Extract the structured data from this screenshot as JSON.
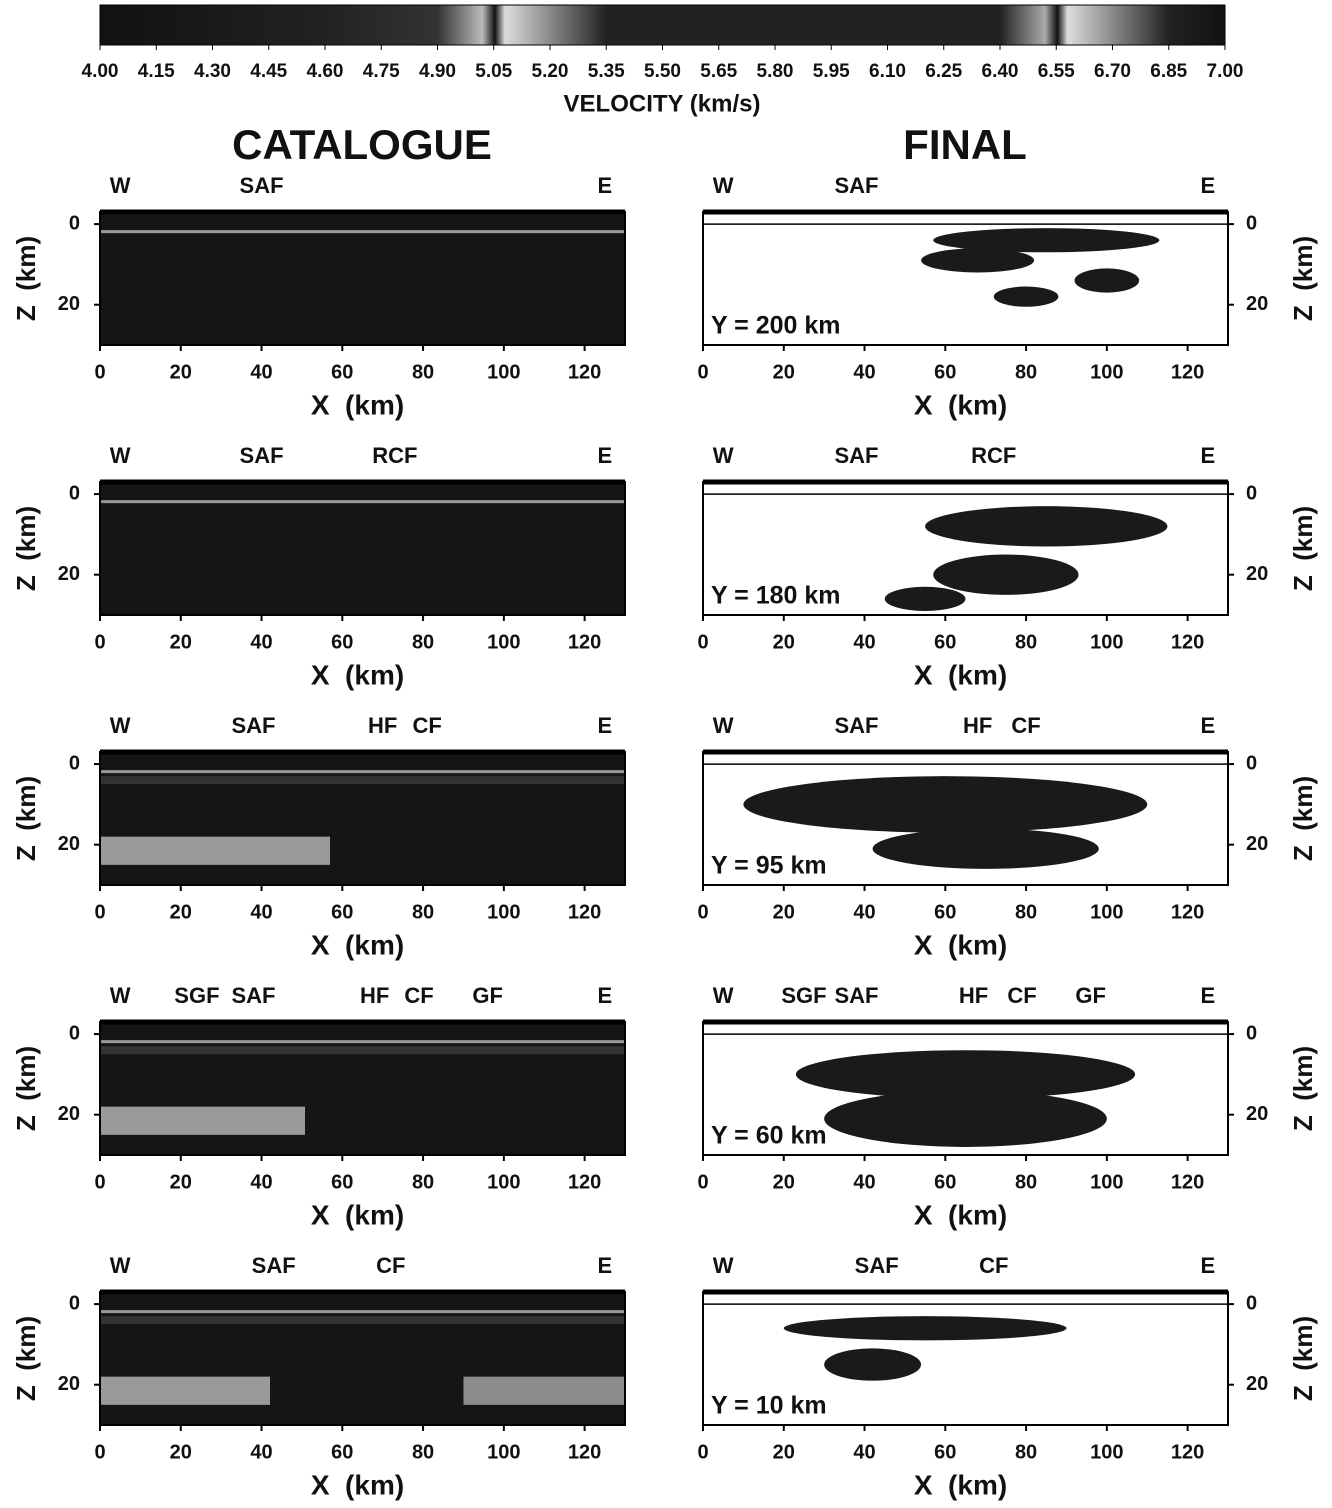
{
  "colorbar": {
    "label": "VELOCITY (km/s)",
    "lim": [
      4,
      7
    ],
    "ticks": [
      {
        "value": 4,
        "label": "4.00"
      },
      4.15,
      {
        "value": 4.3,
        "label": "4.30"
      },
      4.45,
      {
        "value": 4.6,
        "label": "4.60"
      },
      4.75,
      {
        "value": 4.9,
        "label": "4.90"
      },
      5.05,
      {
        "value": 5.2,
        "label": "5.20"
      },
      5.35,
      {
        "value": 5.5,
        "label": "5.50"
      },
      5.65,
      {
        "value": 5.8,
        "label": "5.80"
      },
      5.95,
      {
        "value": 6.1,
        "label": "6.10"
      },
      6.25,
      {
        "value": 6.4,
        "label": "6.40"
      },
      6.55,
      {
        "value": 6.7,
        "label": "6.70"
      },
      6.85,
      {
        "value": 7,
        "label": "7.00"
      }
    ]
  },
  "column_titles": [
    "CATALOGUE",
    "FINAL"
  ],
  "chart_data": [
    {
      "type": "section",
      "xlabel": "X  (km)",
      "ylabel": "Z  (km)",
      "xlim": [
        0,
        130
      ],
      "ylim": [
        -3,
        30
      ],
      "xticks": [
        0,
        20,
        40,
        60,
        80,
        100,
        120
      ],
      "yticks": [
        0,
        20
      ],
      "faults": [
        {
          "name": "W",
          "x": 5
        },
        {
          "name": "SAF",
          "x": 40
        },
        {
          "name": "E",
          "x": 125
        }
      ]
    },
    {
      "type": "section",
      "xlabel": "X  (km)",
      "ylabel": "Z  (km)",
      "xlim": [
        0,
        130
      ],
      "ylim": [
        -3,
        30
      ],
      "xticks": [
        0,
        20,
        40,
        60,
        80,
        100,
        120
      ],
      "yticks": [
        0,
        20
      ],
      "faults": [
        {
          "name": "W",
          "x": 5
        },
        {
          "name": "SAF",
          "x": 38
        },
        {
          "name": "E",
          "x": 125
        }
      ],
      "slice": "Y = 200 km"
    },
    {
      "type": "section",
      "xlabel": "X  (km)",
      "ylabel": "Z  (km)",
      "xlim": [
        0,
        130
      ],
      "ylim": [
        -3,
        30
      ],
      "xticks": [
        0,
        20,
        40,
        60,
        80,
        100,
        120
      ],
      "yticks": [
        0,
        20
      ],
      "faults": [
        {
          "name": "W",
          "x": 5
        },
        {
          "name": "SAF",
          "x": 40
        },
        {
          "name": "RCF",
          "x": 73
        },
        {
          "name": "E",
          "x": 125
        }
      ]
    },
    {
      "type": "section",
      "xlabel": "X  (km)",
      "ylabel": "Z  (km)",
      "xlim": [
        0,
        130
      ],
      "ylim": [
        -3,
        30
      ],
      "xticks": [
        0,
        20,
        40,
        60,
        80,
        100,
        120
      ],
      "yticks": [
        0,
        20
      ],
      "faults": [
        {
          "name": "W",
          "x": 5
        },
        {
          "name": "SAF",
          "x": 38
        },
        {
          "name": "RCF",
          "x": 72
        },
        {
          "name": "E",
          "x": 125
        }
      ],
      "slice": "Y = 180 km"
    },
    {
      "type": "section",
      "xlabel": "X  (km)",
      "ylabel": "Z  (km)",
      "xlim": [
        0,
        130
      ],
      "ylim": [
        -3,
        30
      ],
      "xticks": [
        0,
        20,
        40,
        60,
        80,
        100,
        120
      ],
      "yticks": [
        0,
        20
      ],
      "faults": [
        {
          "name": "W",
          "x": 5
        },
        {
          "name": "SAF",
          "x": 38
        },
        {
          "name": "HF",
          "x": 70
        },
        {
          "name": "CF",
          "x": 81
        },
        {
          "name": "E",
          "x": 125
        }
      ]
    },
    {
      "type": "section",
      "xlabel": "X  (km)",
      "ylabel": "Z  (km)",
      "xlim": [
        0,
        130
      ],
      "ylim": [
        -3,
        30
      ],
      "xticks": [
        0,
        20,
        40,
        60,
        80,
        100,
        120
      ],
      "yticks": [
        0,
        20
      ],
      "faults": [
        {
          "name": "W",
          "x": 5
        },
        {
          "name": "SAF",
          "x": 38
        },
        {
          "name": "HF",
          "x": 68
        },
        {
          "name": "CF",
          "x": 80
        },
        {
          "name": "E",
          "x": 125
        }
      ],
      "slice": "Y = 95 km"
    },
    {
      "type": "section",
      "xlabel": "X  (km)",
      "ylabel": "Z  (km)",
      "xlim": [
        0,
        130
      ],
      "ylim": [
        -3,
        30
      ],
      "xticks": [
        0,
        20,
        40,
        60,
        80,
        100,
        120
      ],
      "yticks": [
        0,
        20
      ],
      "faults": [
        {
          "name": "W",
          "x": 5
        },
        {
          "name": "SGF",
          "x": 24
        },
        {
          "name": "SAF",
          "x": 38
        },
        {
          "name": "HF",
          "x": 68
        },
        {
          "name": "CF",
          "x": 79
        },
        {
          "name": "GF",
          "x": 96
        },
        {
          "name": "E",
          "x": 125
        }
      ]
    },
    {
      "type": "section",
      "xlabel": "X  (km)",
      "ylabel": "Z  (km)",
      "xlim": [
        0,
        130
      ],
      "ylim": [
        -3,
        30
      ],
      "xticks": [
        0,
        20,
        40,
        60,
        80,
        100,
        120
      ],
      "yticks": [
        0,
        20
      ],
      "faults": [
        {
          "name": "W",
          "x": 5
        },
        {
          "name": "SGF",
          "x": 25
        },
        {
          "name": "SAF",
          "x": 38
        },
        {
          "name": "HF",
          "x": 67
        },
        {
          "name": "CF",
          "x": 79
        },
        {
          "name": "GF",
          "x": 96
        },
        {
          "name": "E",
          "x": 125
        }
      ],
      "slice": "Y = 60 km"
    },
    {
      "type": "section",
      "xlabel": "X  (km)",
      "ylabel": "Z  (km)",
      "xlim": [
        0,
        130
      ],
      "ylim": [
        -3,
        30
      ],
      "xticks": [
        0,
        20,
        40,
        60,
        80,
        100,
        120
      ],
      "yticks": [
        0,
        20
      ],
      "faults": [
        {
          "name": "W",
          "x": 5
        },
        {
          "name": "SAF",
          "x": 43
        },
        {
          "name": "CF",
          "x": 72
        },
        {
          "name": "E",
          "x": 125
        }
      ]
    },
    {
      "type": "section",
      "xlabel": "X  (km)",
      "ylabel": "Z  (km)",
      "xlim": [
        0,
        130
      ],
      "ylim": [
        -3,
        30
      ],
      "xticks": [
        0,
        20,
        40,
        60,
        80,
        100,
        120
      ],
      "yticks": [
        0,
        20
      ],
      "faults": [
        {
          "name": "W",
          "x": 5
        },
        {
          "name": "SAF",
          "x": 43
        },
        {
          "name": "CF",
          "x": 72
        },
        {
          "name": "E",
          "x": 125
        }
      ],
      "slice": "Y = 10 km"
    }
  ]
}
